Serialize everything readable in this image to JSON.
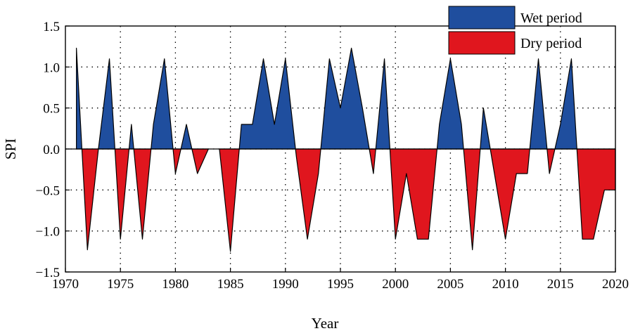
{
  "chart_data": {
    "type": "area",
    "title": "",
    "xlabel": "Year",
    "ylabel": "SPI",
    "xlim": [
      1970,
      2020
    ],
    "ylim": [
      -1.5,
      1.5
    ],
    "xticks": [
      1970,
      1975,
      1980,
      1985,
      1990,
      1995,
      2000,
      2005,
      2010,
      2015,
      2020
    ],
    "yticks": [
      -1.5,
      -1.0,
      -0.5,
      0.0,
      0.5,
      1.0,
      1.5
    ],
    "ytick_labels": [
      "−1.5",
      "−1.0",
      "−0.5",
      "0.0",
      "0.5",
      "1.0",
      "1.5"
    ],
    "grid": "dotted",
    "legend_position": "top-right",
    "colors": {
      "wet": "#1f4e9e",
      "dry": "#e0161e",
      "outline": "#000000"
    },
    "series": [
      {
        "name": "Wet period",
        "rule": "SPI > 0"
      },
      {
        "name": "Dry period",
        "rule": "SPI < 0"
      }
    ],
    "x": [
      1971,
      1972,
      1973,
      1974,
      1975,
      1976,
      1977,
      1978,
      1979,
      1980,
      1981,
      1982,
      1983,
      1984,
      1985,
      1986,
      1987,
      1988,
      1989,
      1990,
      1991,
      1992,
      1993,
      1994,
      1995,
      1996,
      1997,
      1998,
      1999,
      2000,
      2001,
      2002,
      2003,
      2004,
      2005,
      2006,
      2007,
      2008,
      2009,
      2010,
      2011,
      2012,
      2013,
      2014,
      2015,
      2016,
      2017,
      2018,
      2019,
      2020
    ],
    "values": [
      1.23,
      -1.23,
      0.0,
      1.1,
      -1.1,
      0.3,
      -1.1,
      0.3,
      1.1,
      -0.3,
      0.3,
      -0.3,
      0.0,
      0.0,
      -1.25,
      0.3,
      0.3,
      1.1,
      0.3,
      1.1,
      -0.1,
      -1.1,
      -0.3,
      1.1,
      0.5,
      1.23,
      0.5,
      -0.3,
      1.1,
      -1.1,
      -0.3,
      -1.1,
      -1.1,
      0.3,
      1.1,
      0.3,
      -1.23,
      0.5,
      -0.3,
      -1.1,
      -0.3,
      -0.3,
      1.1,
      -0.3,
      0.3,
      1.1,
      -1.1,
      -1.1,
      -0.5,
      -0.5
    ]
  }
}
